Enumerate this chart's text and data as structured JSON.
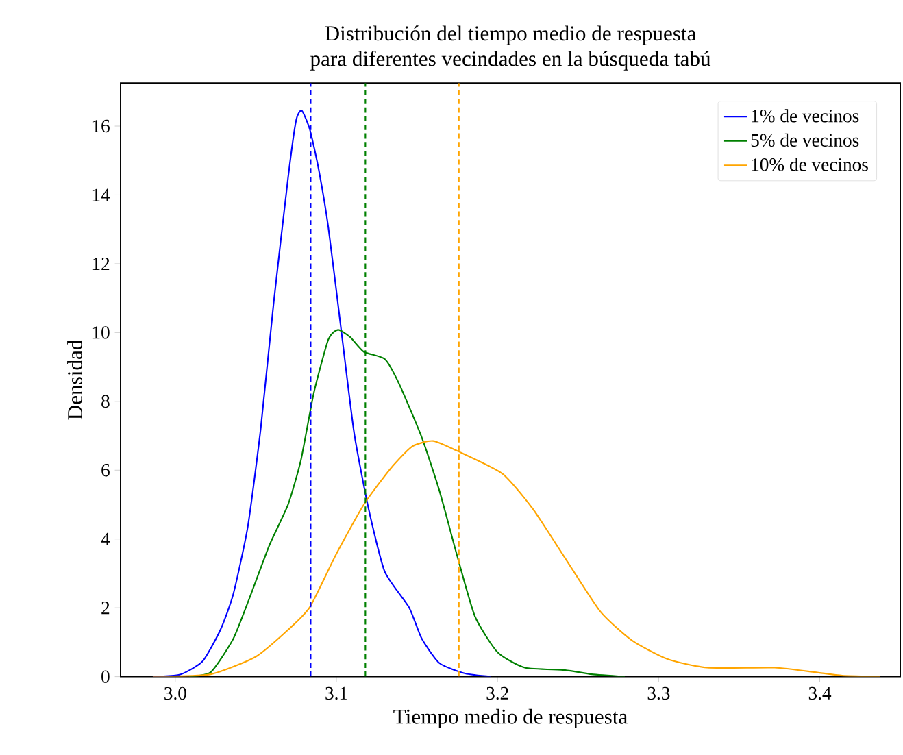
{
  "chart_data": {
    "type": "line",
    "title": "Distribución del tiempo medio de respuesta",
    "subtitle": "para diferentes vecindades en la búsqueda tabú",
    "xlabel": "Tiempo medio de respuesta",
    "ylabel": "Densidad",
    "xlim": [
      2.966,
      3.45
    ],
    "ylim": [
      0,
      17.25
    ],
    "xticks": [
      {
        "value": 3.0,
        "label": "3.0"
      },
      {
        "value": 3.1,
        "label": "3.1"
      },
      {
        "value": 3.2,
        "label": "3.2"
      },
      {
        "value": 3.3,
        "label": "3.3"
      },
      {
        "value": 3.4,
        "label": "3.4"
      }
    ],
    "yticks": [
      0,
      2,
      4,
      6,
      8,
      10,
      12,
      14,
      16
    ],
    "legend": "top right",
    "marker": "none",
    "line_style": "solid",
    "series": [
      {
        "name": "1% de vecinos",
        "color": "#0000ff",
        "x": [
          2.986,
          3.003,
          3.017,
          3.028,
          3.036,
          3.045,
          3.053,
          3.061,
          3.07,
          3.075,
          3.0785,
          3.0835,
          3.089,
          3.095,
          3.103,
          3.111,
          3.12,
          3.13,
          3.145,
          3.153,
          3.164,
          3.18,
          3.196
        ],
        "values": [
          0,
          0.06,
          0.45,
          1.36,
          2.4,
          4.36,
          7.2,
          10.84,
          14.5,
          16.17,
          16.45,
          15.9,
          14.74,
          13.05,
          10.06,
          7.08,
          4.87,
          3.05,
          2.02,
          1.1,
          0.39,
          0.09,
          0
        ]
      },
      {
        "name": "5% de vecinos",
        "color": "#008000",
        "x": [
          3.0085,
          3.022,
          3.036,
          3.047,
          3.0585,
          3.07,
          3.078,
          3.086,
          3.095,
          3.101,
          3.1085,
          3.117,
          3.13,
          3.139,
          3.153,
          3.164,
          3.175,
          3.186,
          3.2,
          3.217,
          3.242,
          3.2585,
          3.279
        ],
        "values": [
          0,
          0.13,
          1.1,
          2.4,
          3.83,
          5.0,
          6.3,
          8.25,
          9.8,
          10.08,
          9.87,
          9.44,
          9.23,
          8.5,
          6.95,
          5.39,
          3.5,
          1.75,
          0.71,
          0.26,
          0.19,
          0.07,
          0
        ]
      },
      {
        "name": "10% de vecinos",
        "color": "#ffa500",
        "x": [
          2.986,
          3.022,
          3.05,
          3.07,
          3.0835,
          3.1,
          3.117,
          3.1335,
          3.147,
          3.16,
          3.175,
          3.203,
          3.222,
          3.242,
          3.264,
          3.2835,
          3.305,
          3.33,
          3.372,
          3.397,
          3.414,
          3.4375
        ],
        "values": [
          0,
          0.07,
          0.58,
          1.36,
          2.02,
          3.57,
          5.0,
          6.04,
          6.69,
          6.85,
          6.56,
          5.9,
          4.87,
          3.44,
          1.88,
          1.05,
          0.52,
          0.26,
          0.26,
          0.13,
          0.03,
          0
        ]
      }
    ],
    "ref_lines": [
      {
        "axis": "x",
        "value": 3.084,
        "color": "#0000ff",
        "line_style": "dashed"
      },
      {
        "axis": "x",
        "value": 3.118,
        "color": "#008000",
        "line_style": "dashed"
      },
      {
        "axis": "x",
        "value": 3.176,
        "color": "#ffa500",
        "line_style": "dashed"
      }
    ]
  }
}
